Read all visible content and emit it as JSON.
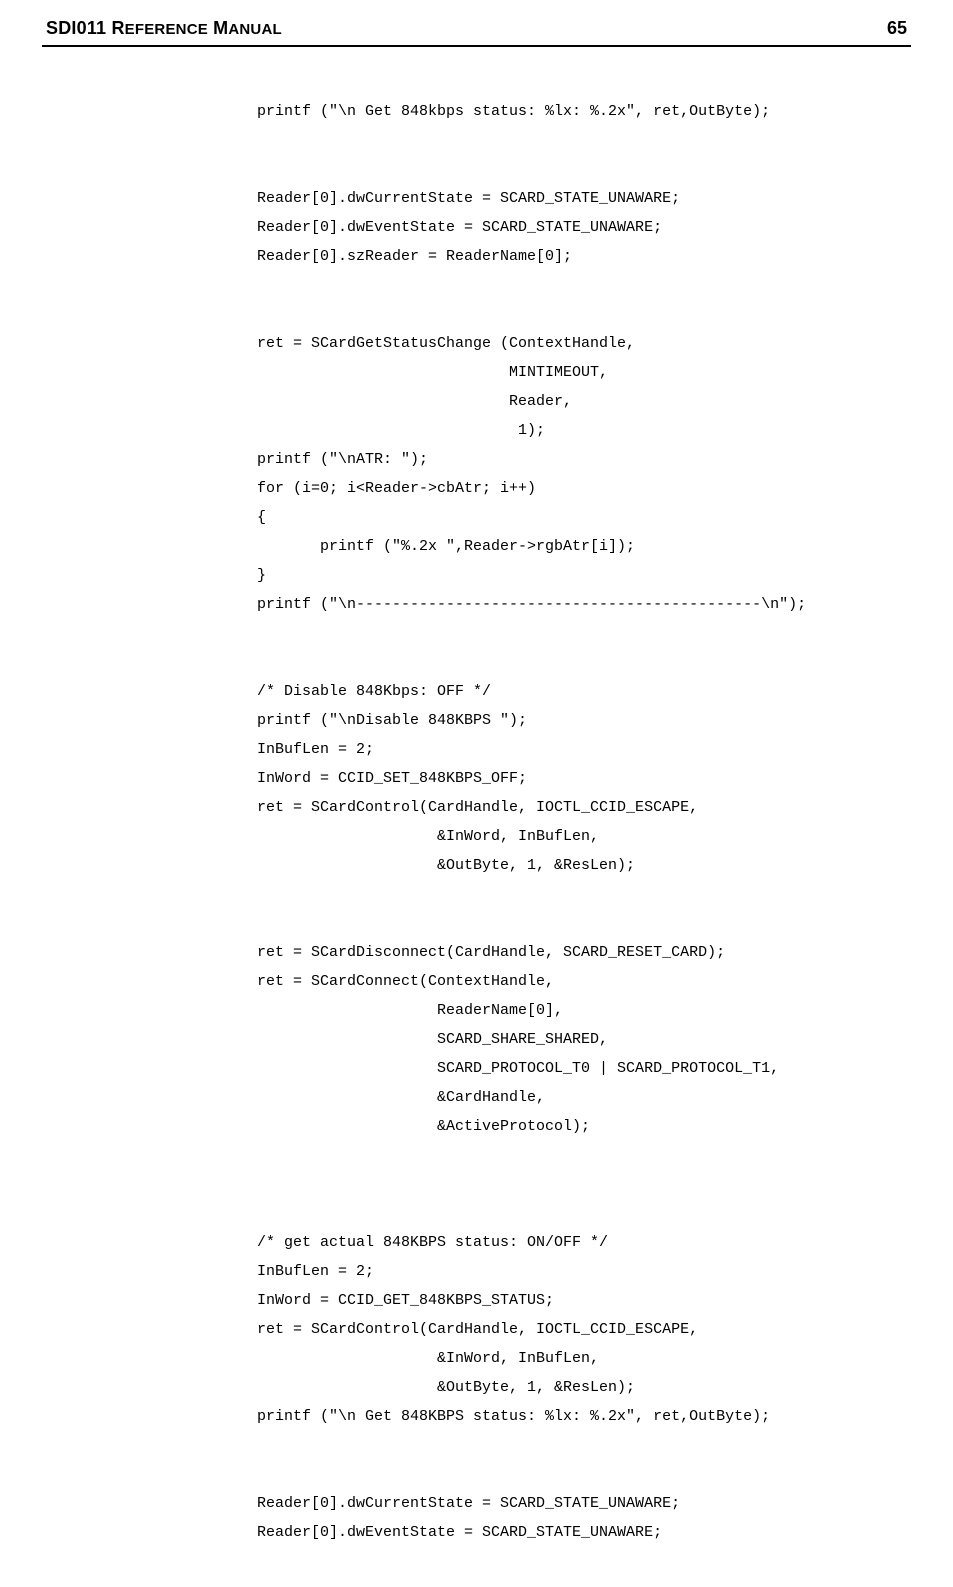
{
  "header": {
    "title_main": "SDI011 R",
    "title_rest1": "EFERENCE",
    "title_space": " M",
    "title_rest2": "ANUAL",
    "page_number": "65"
  },
  "code": {
    "lines": [
      "printf (\"\\n Get 848kbps status: %lx: %.2x\", ret,OutByte);",
      "",
      "",
      "Reader[0].dwCurrentState = SCARD_STATE_UNAWARE;",
      "Reader[0].dwEventState = SCARD_STATE_UNAWARE;",
      "Reader[0].szReader = ReaderName[0];",
      "",
      "",
      "ret = SCardGetStatusChange (ContextHandle,",
      "                            MINTIMEOUT,",
      "                            Reader,",
      "                             1);",
      "printf (\"\\nATR: \");",
      "for (i=0; i<Reader->cbAtr; i++)",
      "{",
      "       printf (\"%.2x \",Reader->rgbAtr[i]);",
      "}",
      "printf (\"\\n---------------------------------------------\\n\");",
      "",
      "",
      "/* Disable 848Kbps: OFF */",
      "printf (\"\\nDisable 848KBPS \");",
      "InBufLen = 2;",
      "InWord = CCID_SET_848KBPS_OFF;",
      "ret = SCardControl(CardHandle, IOCTL_CCID_ESCAPE,",
      "                    &InWord, InBufLen,",
      "                    &OutByte, 1, &ResLen);",
      "",
      "",
      "ret = SCardDisconnect(CardHandle, SCARD_RESET_CARD);",
      "ret = SCardConnect(ContextHandle,",
      "                    ReaderName[0],",
      "                    SCARD_SHARE_SHARED,",
      "                    SCARD_PROTOCOL_T0 | SCARD_PROTOCOL_T1,",
      "                    &CardHandle,",
      "                    &ActiveProtocol);",
      "",
      "",
      "",
      "/* get actual 848KBPS status: ON/OFF */",
      "InBufLen = 2;",
      "InWord = CCID_GET_848KBPS_STATUS;",
      "ret = SCardControl(CardHandle, IOCTL_CCID_ESCAPE,",
      "                    &InWord, InBufLen,",
      "                    &OutByte, 1, &ResLen);",
      "printf (\"\\n Get 848KBPS status: %lx: %.2x\", ret,OutByte);",
      "",
      "",
      "Reader[0].dwCurrentState = SCARD_STATE_UNAWARE;",
      "Reader[0].dwEventState = SCARD_STATE_UNAWARE;"
    ]
  }
}
